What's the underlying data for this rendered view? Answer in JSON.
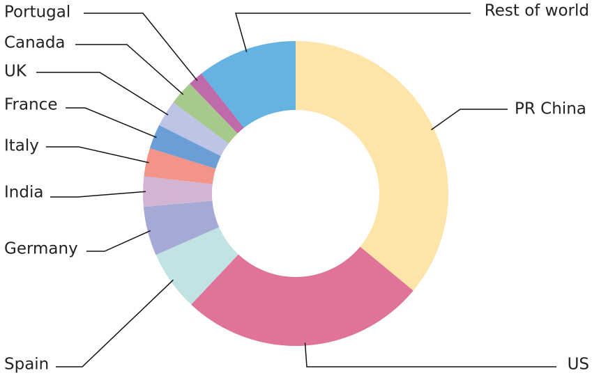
{
  "chart_data": {
    "type": "donut",
    "categories": [
      "PR China",
      "US",
      "Spain",
      "Germany",
      "India",
      "Italy",
      "France",
      "UK",
      "Canada",
      "Portugal",
      "Rest of world"
    ],
    "values": [
      36,
      26,
      6.4,
      5.2,
      3.2,
      3,
      2.6,
      2.8,
      2.6,
      1.6,
      10.6
    ],
    "colors": [
      "#fde4a8",
      "#e07398",
      "#c2e3e3",
      "#a5a9d6",
      "#d1b5d2",
      "#f29487",
      "#6b9ed6",
      "#bec4e6",
      "#a8c98c",
      "#bf6aab",
      "#64b3e2"
    ]
  }
}
